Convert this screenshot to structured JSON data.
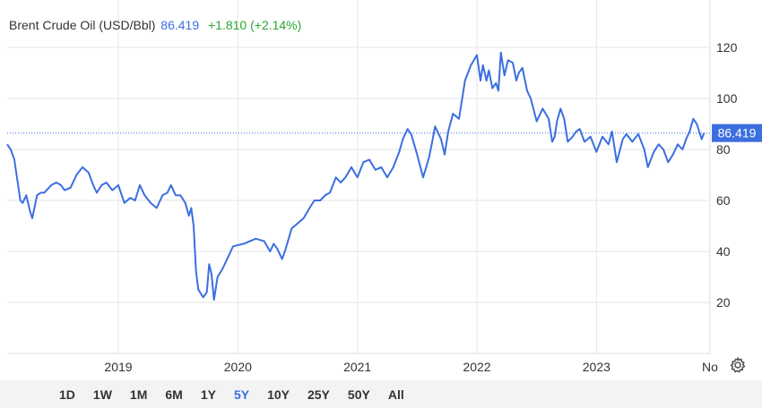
{
  "header": {
    "title": "Brent Crude Oil (USD/Bbl)",
    "price": "86.419",
    "change": "+1.810 (+2.14%)"
  },
  "ranges": [
    "1D",
    "1W",
    "1M",
    "6M",
    "1Y",
    "5Y",
    "10Y",
    "25Y",
    "50Y",
    "All"
  ],
  "active_range": "5Y",
  "colors": {
    "line": "#3b6fe0",
    "change": "#2aa830",
    "grid": "#e6e6e6",
    "text": "#333333"
  },
  "chart_data": {
    "type": "line",
    "title": "Brent Crude Oil (USD/Bbl)",
    "xlabel": "",
    "ylabel": "",
    "ylim": [
      0,
      140
    ],
    "yticks": [
      20,
      40,
      60,
      80,
      100,
      120
    ],
    "xticks": [
      "2019",
      "2020",
      "2021",
      "2022",
      "2023",
      "No"
    ],
    "grid": true,
    "last_value_label": "86.419",
    "series": [
      {
        "values_x": [
          2018.07,
          2018.1,
          2018.13,
          2018.18,
          2018.2,
          2018.23,
          2018.26,
          2018.28,
          2018.32,
          2018.35,
          2018.38,
          2018.44,
          2018.48,
          2018.52,
          2018.55,
          2018.6,
          2018.65,
          2018.7,
          2018.75,
          2018.79,
          2018.82,
          2018.86,
          2018.9,
          2018.95,
          2019.0,
          2019.05,
          2019.1,
          2019.14,
          2019.18,
          2019.22,
          2019.27,
          2019.32,
          2019.37,
          2019.41,
          2019.44,
          2019.48,
          2019.52,
          2019.56,
          2019.59,
          2019.61,
          2019.63,
          2019.65,
          2019.67,
          2019.71,
          2019.74,
          2019.76,
          2019.78,
          2019.8,
          2019.83,
          2019.87,
          2019.92,
          2019.96,
          2020.05,
          2020.15,
          2020.22,
          2020.27,
          2020.3,
          2020.33,
          2020.37,
          2020.4,
          2020.45,
          2020.5,
          2020.55,
          2020.6,
          2020.64,
          2020.69,
          2020.73,
          2020.77,
          2020.82,
          2020.86,
          2020.9,
          2020.95,
          2021.0,
          2021.05,
          2021.1,
          2021.15,
          2021.2,
          2021.25,
          2021.3,
          2021.35,
          2021.38,
          2021.42,
          2021.45,
          2021.5,
          2021.55,
          2021.6,
          2021.63,
          2021.65,
          2021.7,
          2021.73,
          2021.76,
          2021.8,
          2021.85,
          2021.9,
          2021.95,
          2022.0,
          2022.03,
          2022.05,
          2022.08,
          2022.1,
          2022.13,
          2022.16,
          2022.18,
          2022.2,
          2022.23,
          2022.26,
          2022.3,
          2022.33,
          2022.35,
          2022.38,
          2022.42,
          2022.45,
          2022.5,
          2022.55,
          2022.6,
          2022.63,
          2022.65,
          2022.67,
          2022.7,
          2022.73,
          2022.76,
          2022.8,
          2022.83,
          2022.86,
          2022.9,
          2022.95,
          2023.0,
          2023.05,
          2023.1,
          2023.13,
          2023.17,
          2023.22,
          2023.25,
          2023.3,
          2023.35,
          2023.4,
          2023.43,
          2023.48,
          2023.52,
          2023.56,
          2023.6,
          2023.64,
          2023.68,
          2023.72,
          2023.75,
          2023.78,
          2023.81,
          2023.84,
          2023.88,
          2023.9
        ],
        "values_y": [
          82,
          80,
          76,
          60,
          59,
          62,
          56,
          53,
          62,
          63,
          63,
          66,
          67,
          66,
          64,
          65,
          70,
          73,
          71,
          66,
          63,
          66,
          67,
          64,
          66,
          59,
          61,
          60,
          66,
          62,
          59,
          57,
          62,
          63,
          66,
          62,
          62,
          59,
          54,
          57,
          50,
          32,
          25,
          22,
          24,
          35,
          31,
          21,
          30,
          33,
          38,
          42,
          43,
          45,
          44,
          40,
          43,
          41,
          37,
          41,
          49,
          51,
          53,
          57,
          60,
          60,
          62,
          63,
          69,
          67,
          69,
          73,
          69,
          75,
          76,
          72,
          73,
          69,
          73,
          79,
          84,
          88,
          86,
          78,
          69,
          77,
          84,
          89,
          84,
          78,
          87,
          94,
          92,
          107,
          113,
          117,
          107,
          113,
          107,
          111,
          104,
          106,
          103,
          118,
          109,
          115,
          114,
          107,
          110,
          112,
          103,
          100,
          91,
          96,
          92,
          83,
          85,
          91,
          96,
          92,
          83,
          85,
          87,
          88,
          83,
          85,
          79,
          85,
          82,
          87,
          75,
          84,
          86,
          83,
          86,
          80,
          73,
          79,
          82,
          80,
          75,
          78,
          82,
          80,
          84,
          87,
          92,
          90,
          84,
          86.419
        ]
      }
    ]
  }
}
